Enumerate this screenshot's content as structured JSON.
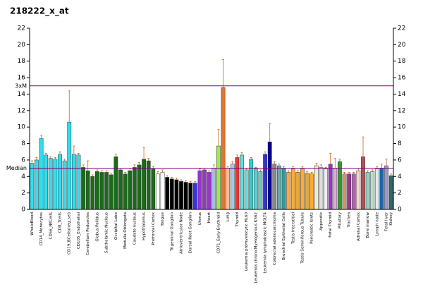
{
  "chart_data": {
    "type": "bar",
    "title": "218222_x_at",
    "ylim": [
      0,
      22
    ],
    "yticks": [
      0,
      2,
      4,
      6,
      8,
      10,
      12,
      14,
      16,
      18,
      20,
      22
    ],
    "reference_lines": [
      {
        "label": "3xM",
        "value": 15
      },
      {
        "label": "Median",
        "value": 5
      }
    ],
    "reference_color": "#800080",
    "categories": [
      "WholeBlood",
      null,
      "CD14_Monocytes",
      null,
      "CD56_NKCells",
      null,
      "CD8_Tcells",
      null,
      "CD19_BCells(neg_sel)",
      null,
      "CD105_Endothelial",
      null,
      "Cerebellum Peduncles",
      null,
      "Globus Pallidus",
      null,
      "Subthalamic Nucleus",
      null,
      "Occipital Lobe",
      null,
      "Medulla Oblongata",
      null,
      "Caudate nucleus",
      null,
      "Hypothalamus",
      null,
      "Prefrontal Cortex",
      null,
      "Tongue",
      null,
      "Trigeminal Ganglion",
      null,
      "Atrioventricular Node",
      null,
      "Dorsal Root Ganglion",
      null,
      "Uterus",
      null,
      "Heart",
      null,
      "CD71_Early Erythroid",
      null,
      "Lung",
      null,
      "Thyroid",
      null,
      "Leukemia promyelocytic HL60",
      null,
      "Leukemia chronicMyelogenous K562",
      null,
      "Leukemia lymphoblastic MOLT4",
      null,
      "Colorectal adenocarcinoma",
      null,
      "Bronchial Epithelial Cells",
      null,
      "Testis Interstitial",
      null,
      "Testis Seminiferous Tubule",
      null,
      "Pancreatic Islets",
      null,
      "Appendix",
      null,
      "Fetal Thyroid",
      null,
      "Pituitary",
      null,
      "Trachea",
      null,
      "Adrenal Cortex",
      null,
      "Bone marrow",
      null,
      "Lymph node",
      null,
      "Fetal liver",
      "Kidney"
    ],
    "values": [
      5.6,
      6.0,
      8.6,
      6.6,
      6.2,
      6.1,
      6.7,
      5.9,
      10.6,
      6.7,
      6.6,
      5.1,
      4.7,
      4.0,
      4.6,
      4.5,
      4.5,
      4.2,
      6.4,
      4.8,
      4.3,
      4.7,
      5.1,
      5.4,
      6.1,
      5.9,
      4.9,
      4.3,
      4.5,
      3.9,
      3.7,
      3.6,
      3.4,
      3.3,
      3.2,
      3.2,
      4.7,
      4.8,
      4.5,
      5.0,
      7.7,
      14.8,
      5.0,
      5.5,
      6.3,
      6.6,
      4.8,
      6.1,
      4.9,
      4.6,
      6.7,
      8.2,
      5.5,
      5.3,
      5.0,
      4.5,
      4.9,
      4.5,
      4.9,
      4.4,
      4.3,
      5.3,
      5.1,
      4.9,
      5.5,
      5.0,
      5.8,
      4.3,
      4.3,
      4.3,
      4.7,
      6.4,
      4.5,
      4.6,
      4.9,
      5.0,
      5.3,
      4.1
    ],
    "errors": [
      0.3,
      0.3,
      0.4,
      0.2,
      0.2,
      0.2,
      0.3,
      0.2,
      3.8,
      1.0,
      0.2,
      0.3,
      1.2,
      0.2,
      0.2,
      0.2,
      0.2,
      0.2,
      0.3,
      0.2,
      0.2,
      0.3,
      0.3,
      0.3,
      1.4,
      0.3,
      0.3,
      0.3,
      0.3,
      0.2,
      0.2,
      0.2,
      0.2,
      0.2,
      0.2,
      0.2,
      0.2,
      0.2,
      0.2,
      0.4,
      2.0,
      3.4,
      0.2,
      0.3,
      0.3,
      0.3,
      0.2,
      0.2,
      0.2,
      0.2,
      0.3,
      2.2,
      0.3,
      0.2,
      0.2,
      0.2,
      0.3,
      0.2,
      0.3,
      0.2,
      0.2,
      0.3,
      0.3,
      0.2,
      1.3,
      1.2,
      0.3,
      0.2,
      0.2,
      0.2,
      0.3,
      2.4,
      0.2,
      0.2,
      0.3,
      0.5,
      0.8,
      0.2
    ],
    "colors": [
      "#33ddee",
      "#33ddee",
      "#33ddee",
      "#33ddee",
      "#33ddee",
      "#33ddee",
      "#33ddee",
      "#33ddee",
      "#33ddee",
      "#33ddee",
      "#33ddee",
      "#1a6b1a",
      "#1a6b1a",
      "#1a6b1a",
      "#1a6b1a",
      "#1a6b1a",
      "#1a6b1a",
      "#1a6b1a",
      "#1a6b1a",
      "#1a6b1a",
      "#1a6b1a",
      "#1a6b1a",
      "#1a6b1a",
      "#1a6b1a",
      "#1a6b1a",
      "#1a6b1a",
      "#1a6b1a",
      "#ffffff",
      "#ffffff",
      "#000000",
      "#000000",
      "#000000",
      "#000000",
      "#000000",
      "#000000",
      "#3333ee",
      "#9933cc",
      "#9933cc",
      "#9933cc",
      "#aabbdd",
      "#99ee44",
      "#dd7733",
      "#ffbb99",
      "#99ccee",
      "#ee3333",
      "#66dddd",
      "#66dddd",
      "#33cccc",
      "#66cccc",
      "#66cccc",
      "#3333cc",
      "#000099",
      "#888888",
      "#66aaaa",
      "#339999",
      "#ffaa33",
      "#ffaa33",
      "#ddaa44",
      "#ffaa33",
      "#ddaa44",
      "#ffaa33",
      "#eeeecc",
      "#dddddd",
      "#eeeeee",
      "#9933cc",
      "#ddaadd",
      "#339933",
      "#cc9966",
      "#993399",
      "#aa66aa",
      "#ffcccc",
      "#aa5555",
      "#99ccbb",
      "#bbddcc",
      "#ddeeee",
      "#2266aa",
      "#9999cc",
      "#336666"
    ],
    "error_color": "#cc6622"
  }
}
